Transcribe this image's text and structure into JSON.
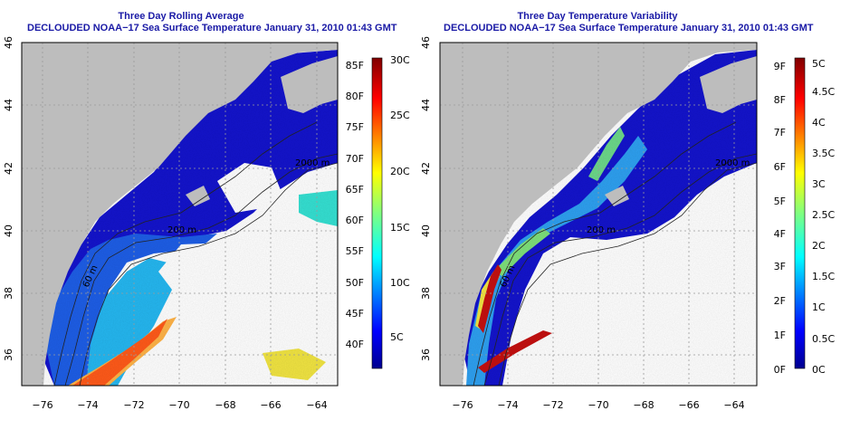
{
  "left": {
    "title_line1": "Three Day Rolling Average",
    "title_line2": "DECLOUDED NOAA−17 Sea Surface Temperature January 31, 2010 01:43 GMT",
    "colorbar_f": [
      "40F",
      "45F",
      "50F",
      "55F",
      "60F",
      "65F",
      "70F",
      "75F",
      "80F",
      "85F"
    ],
    "colorbar_c": [
      "5C",
      "10C",
      "15C",
      "20C",
      "25C",
      "30C"
    ],
    "contour_labels": [
      "2000 m",
      "200 m",
      "60 m"
    ]
  },
  "right": {
    "title_line1": "Three Day Temperature Variability",
    "title_line2": "DECLOUDED NOAA−17 Sea Surface Temperature January 31, 2010 01:43 GMT",
    "colorbar_f": [
      "0F",
      "1F",
      "2F",
      "3F",
      "4F",
      "5F",
      "6F",
      "7F",
      "8F",
      "9F"
    ],
    "colorbar_c": [
      "0C",
      "0.5C",
      "1C",
      "1.5C",
      "2C",
      "2.5C",
      "3C",
      "3.5C",
      "4C",
      "4.5C",
      "5C"
    ],
    "contour_labels": [
      "2000 m",
      "200 m",
      "60 m"
    ]
  },
  "x_ticks": [
    "−76",
    "−74",
    "−72",
    "−70",
    "−68",
    "−66",
    "−64"
  ],
  "y_ticks": [
    "36",
    "38",
    "40",
    "42",
    "44",
    "46"
  ],
  "colors": {
    "title": "#1a1aa6",
    "land": "#bdbdbd",
    "ocean_deep": "#1010c8",
    "no_data": "#ffffff"
  }
}
